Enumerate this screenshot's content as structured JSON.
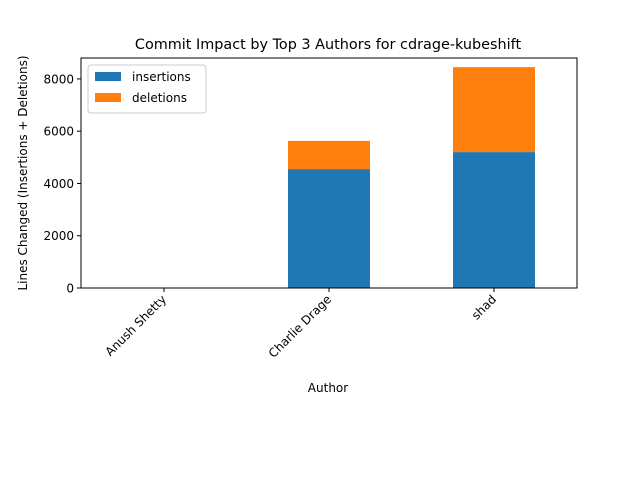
{
  "chart_data": {
    "type": "bar",
    "stacked": true,
    "title": "Commit Impact by Top 3 Authors for cdrage-kubeshift",
    "xlabel": "Author",
    "ylabel": "Lines Changed (Insertions + Deletions)",
    "categories": [
      "Anush Shetty",
      "Charlie Drage",
      "shad"
    ],
    "series": [
      {
        "name": "insertions",
        "color": "#1f77b4",
        "values": [
          0,
          4550,
          5200
        ]
      },
      {
        "name": "deletions",
        "color": "#ff7f0e",
        "values": [
          0,
          1080,
          3250
        ]
      }
    ],
    "ylim": [
      0,
      8800
    ],
    "yticks": [
      0,
      2000,
      4000,
      6000,
      8000
    ],
    "grid": false,
    "legend_position": "top-left",
    "x_tick_rotation": 45
  }
}
